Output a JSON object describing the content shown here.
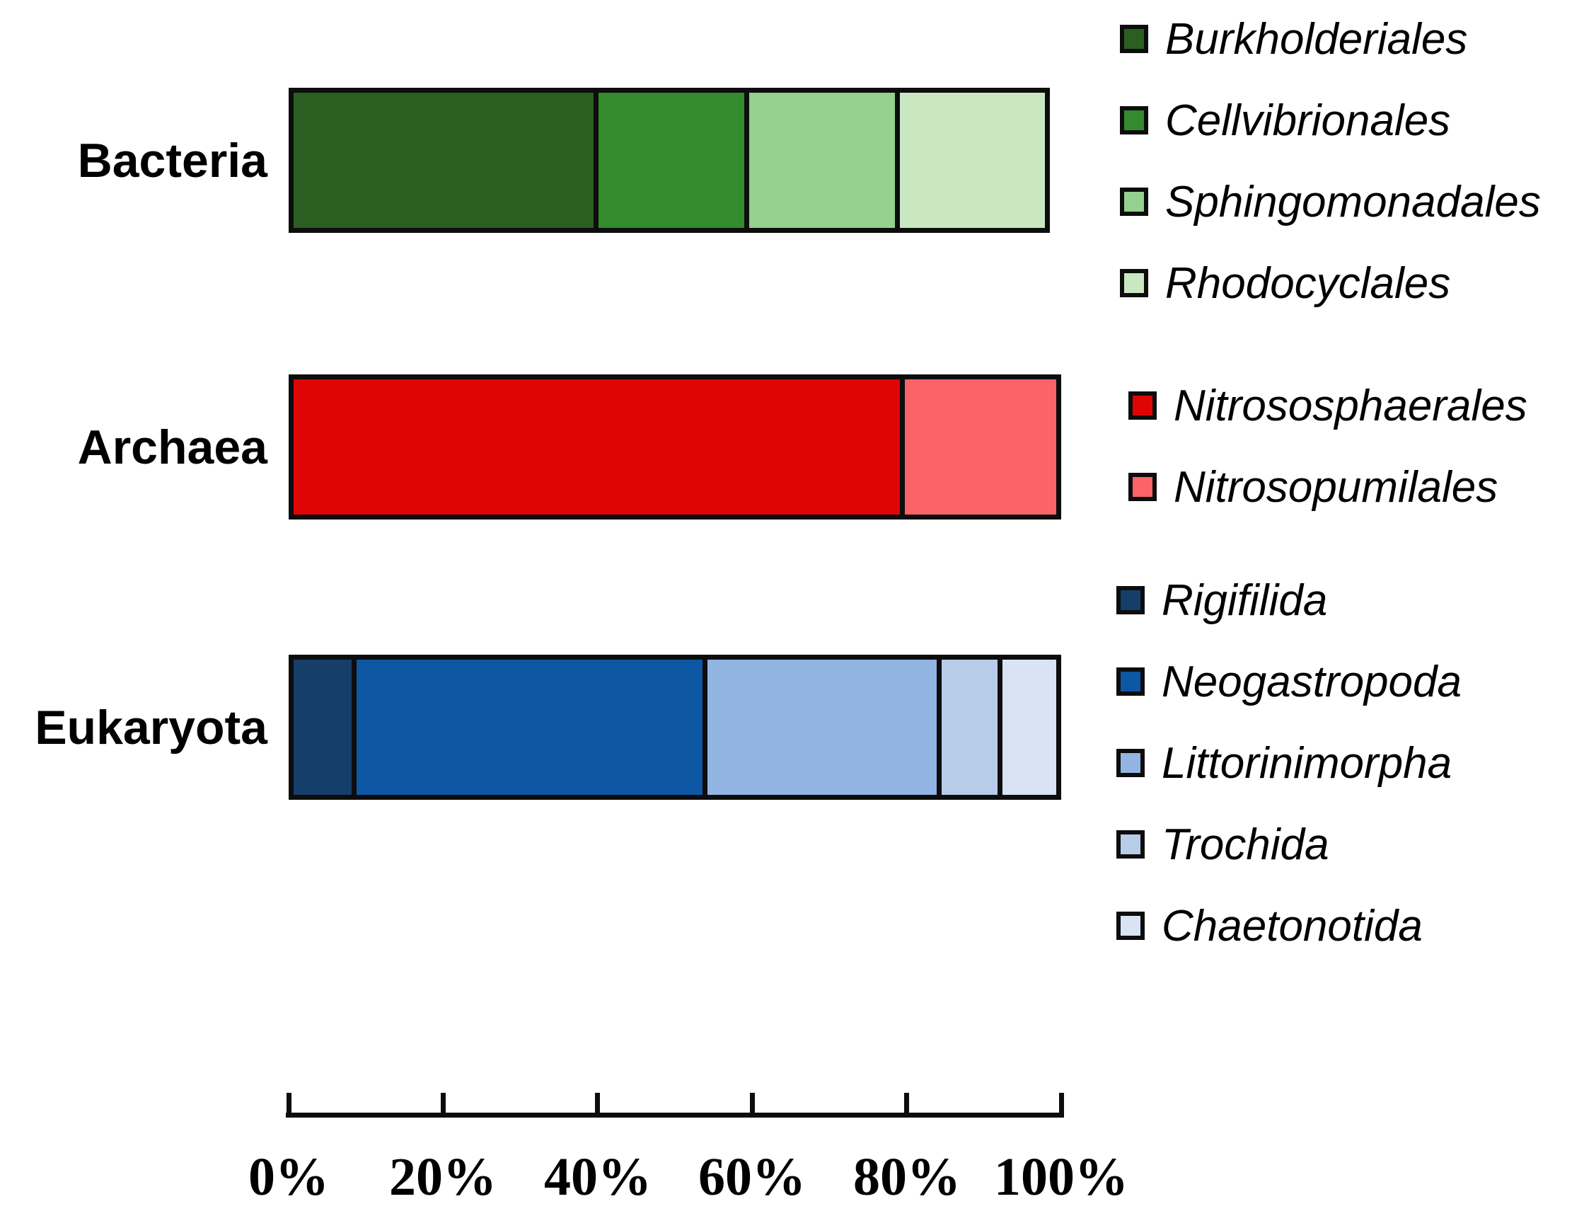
{
  "figure": {
    "background": "#ffffff",
    "stroke_color": "#0d0d0d"
  },
  "chart_data": {
    "type": "bar",
    "variant": "horizontal-stacked-percentage",
    "title": "",
    "xlabel": "",
    "ylabel": "",
    "xlim": [
      0,
      100
    ],
    "x_ticks": [
      "0%",
      "20%",
      "40%",
      "60%",
      "80%",
      "100%"
    ],
    "grid": false,
    "legend_position": "right",
    "categories": [
      "Bacteria",
      "Archaea",
      "Eukaryota"
    ],
    "rows": [
      {
        "category": "Bacteria",
        "segments": [
          {
            "label": "Burkholderiales",
            "value": 39.3,
            "color": "#2a5f21"
          },
          {
            "label": "Cellvibrionales",
            "value": 19.8,
            "color": "#338b2d"
          },
          {
            "label": "Sphingomonadales",
            "value": 19.7,
            "color": "#95d18e"
          },
          {
            "label": "Rhodocyclales",
            "value": 19.7,
            "color": "#c9e8c2"
          }
        ]
      },
      {
        "category": "Archaea",
        "segments": [
          {
            "label": "Nitrososphaerales",
            "value": 79.5,
            "color": "#e00505"
          },
          {
            "label": "Nitrosopumilales",
            "value": 20.5,
            "color": "#fb6368"
          }
        ]
      },
      {
        "category": "Eukaryota",
        "segments": [
          {
            "label": "Rigifilida",
            "value": 7.6,
            "color": "#163e6a"
          },
          {
            "label": "Neogastropoda",
            "value": 46.0,
            "color": "#0e57a5"
          },
          {
            "label": "Littorinimorpha",
            "value": 30.7,
            "color": "#91b4e3"
          },
          {
            "label": "Trochida",
            "value": 8.0,
            "color": "#b6cce9"
          },
          {
            "label": "Chaetonotida",
            "value": 7.7,
            "color": "#d8e4f4"
          }
        ]
      }
    ],
    "legend_groups": [
      {
        "name": "bacteria-orders",
        "items": [
          "Burkholderiales",
          "Cellvibrionales",
          "Sphingomonadales",
          "Rhodocyclales"
        ]
      },
      {
        "name": "archaea-orders",
        "items": [
          "Nitrososphaerales",
          "Nitrosopumilales"
        ]
      },
      {
        "name": "eukaryota-orders",
        "items": [
          "Rigifilida",
          "Neogastropoda",
          "Littorinimorpha",
          "Trochida",
          "Chaetonotida"
        ]
      }
    ]
  }
}
